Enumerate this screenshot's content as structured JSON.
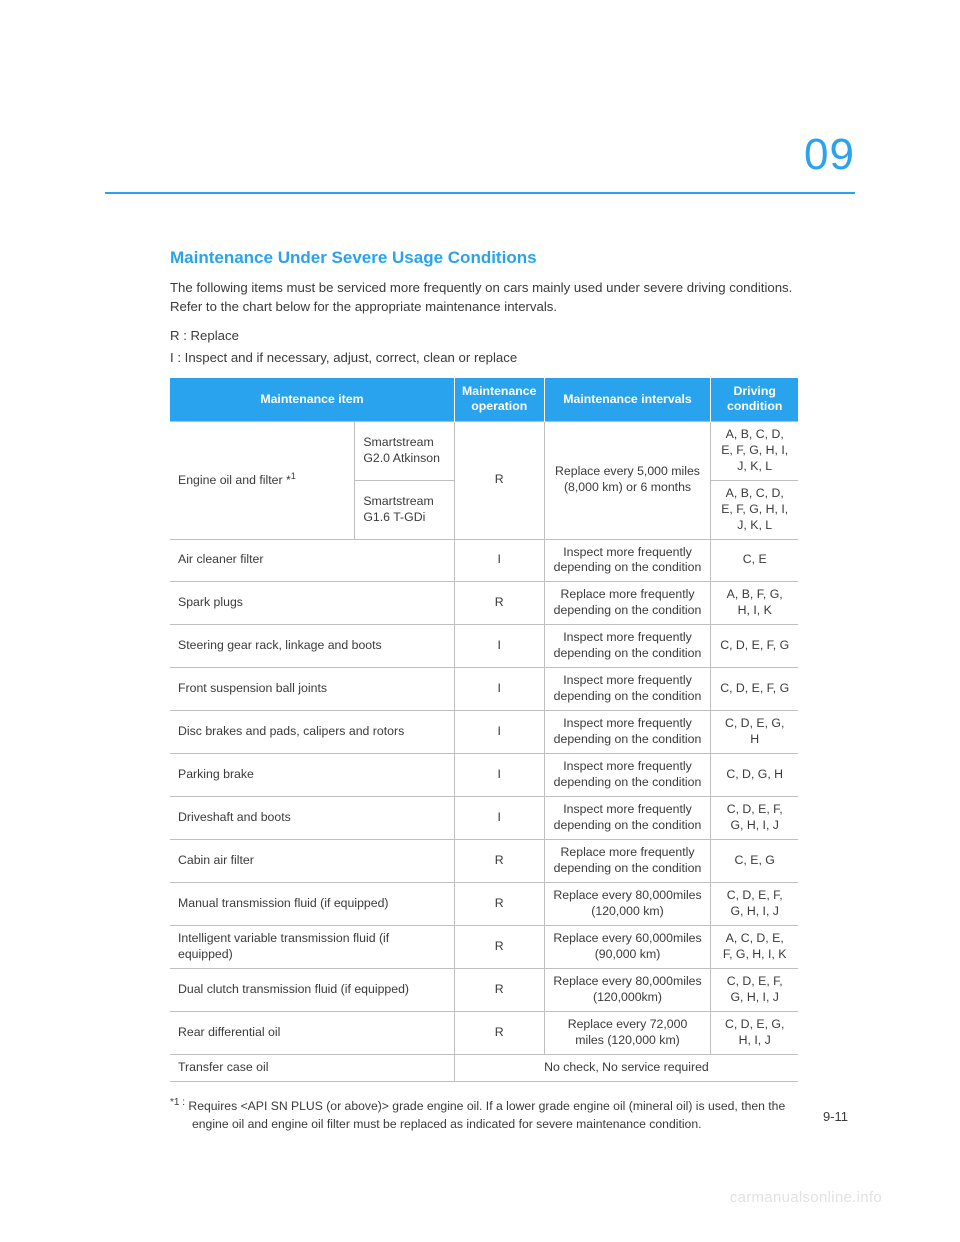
{
  "chapter_number": "09",
  "page_number": "9-11",
  "watermark": "carmanualsonline.info",
  "colors": {
    "accent": "#29a3ee",
    "text": "#3a3a3a",
    "border": "#bfbfbf",
    "watermark": "#e2e2e2",
    "white": "#ffffff"
  },
  "section": {
    "title": "Maintenance Under Severe Usage Conditions",
    "intro": "The following items must be serviced more frequently on cars mainly used under severe driving conditions. Refer to the chart below for the appropriate maintenance intervals.",
    "legend_r": "R : Replace",
    "legend_i": "I : Inspect and if necessary, adjust, correct, clean or replace"
  },
  "table": {
    "headers": {
      "item": "Maintenance item",
      "operation": "Maintenance operation",
      "intervals": "Maintenance intervals",
      "condition": "Driving condition"
    },
    "engine_row": {
      "item_label": "Engine oil and filter *",
      "item_sup": "1",
      "sub1": "Smartstream G2.0 Atkinson",
      "sub2": "Smartstream G1.6 T-GDi",
      "op": "R",
      "interval": "Replace every 5,000 miles (8,000 km) or 6 months",
      "cond1": "A, B, C, D, E, F, G, H, I, J, K, L",
      "cond2": "A, B, C, D, E, F, G, H, I, J, K, L"
    },
    "rows": [
      {
        "item": "Air cleaner filter",
        "op": "I",
        "interval": "Inspect more frequently depending on the condition",
        "cond": "C, E"
      },
      {
        "item": "Spark plugs",
        "op": "R",
        "interval": "Replace more frequently depending on the condition",
        "cond": "A, B, F, G, H, I, K"
      },
      {
        "item": "Steering gear rack, linkage and boots",
        "op": "I",
        "interval": "Inspect more frequently depending on the condition",
        "cond": "C, D, E, F, G"
      },
      {
        "item": "Front suspension ball joints",
        "op": "I",
        "interval": "Inspect more frequently depending on the condition",
        "cond": "C, D, E, F, G"
      },
      {
        "item": "Disc brakes and pads, calipers and rotors",
        "op": "I",
        "interval": "Inspect more frequently depending on the condition",
        "cond": "C, D, E, G, H"
      },
      {
        "item": "Parking brake",
        "op": "I",
        "interval": "Inspect more frequently depending on the condition",
        "cond": "C, D, G, H"
      },
      {
        "item": "Driveshaft and boots",
        "op": "I",
        "interval": "Inspect more frequently depending on the condition",
        "cond": "C, D, E, F, G, H, I, J"
      },
      {
        "item": "Cabin air filter",
        "op": "R",
        "interval": "Replace more frequently depending on the condition",
        "cond": "C, E, G"
      },
      {
        "item": "Manual transmission fluid (if equipped)",
        "op": "R",
        "interval": "Replace every 80,000miles (120,000 km)",
        "cond": "C, D, E, F, G, H, I, J"
      },
      {
        "item": "Intelligent variable transmission fluid (if equipped)",
        "op": "R",
        "interval": "Replace every 60,000miles (90,000 km)",
        "cond": "A, C, D, E, F, G, H, I, K"
      },
      {
        "item": "Dual clutch transmission fluid (if equipped)",
        "op": "R",
        "interval": "Replace every 80,000miles (120,000km)",
        "cond": "C, D, E, F, G, H, I, J"
      },
      {
        "item": "Rear differential oil",
        "op": "R",
        "interval": "Replace every 72,000 miles (120,000 km)",
        "cond": "C, D, E, G, H, I, J"
      }
    ],
    "transfer_row": {
      "item": "Transfer case oil",
      "note": "No check, No service required"
    }
  },
  "footnote": {
    "marker": "*1 :",
    "text": "Requires <API SN PLUS (or above)> grade engine oil. If a lower grade engine oil (mineral oil) is used, then the engine oil and engine oil filter must be replaced as indicated for severe maintenance condition."
  }
}
